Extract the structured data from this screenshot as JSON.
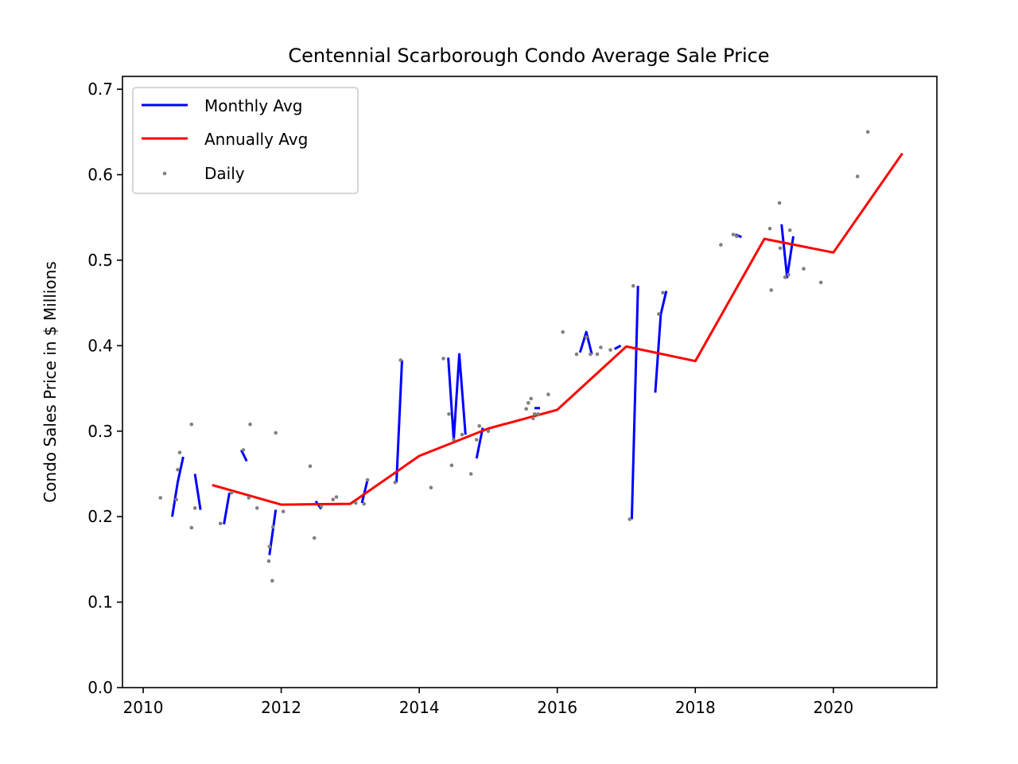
{
  "chart_data": {
    "type": "line",
    "title": "Centennial Scarborough Condo Average Sale Price",
    "xlabel": "",
    "ylabel": "Condo Sales Price in $ Millions",
    "xlim": [
      2009.7,
      2021.5
    ],
    "ylim": [
      0.0,
      0.715
    ],
    "x_ticks": [
      2010,
      2012,
      2014,
      2016,
      2018,
      2020
    ],
    "y_ticks": [
      0.0,
      0.1,
      0.2,
      0.3,
      0.4,
      0.5,
      0.6,
      0.7
    ],
    "x_tick_labels": [
      "2010",
      "2012",
      "2014",
      "2016",
      "2018",
      "2020"
    ],
    "y_tick_labels": [
      "0.0",
      "0.1",
      "0.2",
      "0.3",
      "0.4",
      "0.5",
      "0.6",
      "0.7"
    ],
    "legend_position": "top-left",
    "series": [
      {
        "name": "Monthly Avg",
        "color": "#0000ff",
        "kind": "segments",
        "segments": [
          [
            [
              2010.42,
              0.2
            ],
            [
              2010.5,
              0.24
            ],
            [
              2010.58,
              0.27
            ]
          ],
          [
            [
              2010.75,
              0.25
            ],
            [
              2010.83,
              0.208
            ]
          ],
          [
            [
              2011.17,
              0.191
            ],
            [
              2011.25,
              0.228
            ]
          ],
          [
            [
              2011.42,
              0.278
            ],
            [
              2011.5,
              0.265
            ]
          ],
          [
            [
              2011.83,
              0.155
            ],
            [
              2011.92,
              0.208
            ]
          ],
          [
            [
              2012.5,
              0.218
            ],
            [
              2012.58,
              0.209
            ]
          ],
          [
            [
              2013.17,
              0.216
            ],
            [
              2013.25,
              0.243
            ]
          ],
          [
            [
              2013.67,
              0.24
            ],
            [
              2013.75,
              0.383
            ]
          ],
          [
            [
              2014.42,
              0.386
            ],
            [
              2014.5,
              0.29
            ],
            [
              2014.58,
              0.39
            ],
            [
              2014.67,
              0.296
            ]
          ],
          [
            [
              2014.83,
              0.268
            ],
            [
              2014.92,
              0.304
            ]
          ],
          [
            [
              2015.67,
              0.327
            ],
            [
              2015.75,
              0.327
            ]
          ],
          [
            [
              2016.33,
              0.392
            ],
            [
              2016.42,
              0.416
            ],
            [
              2016.5,
              0.39
            ]
          ],
          [
            [
              2016.83,
              0.396
            ],
            [
              2016.92,
              0.4
            ]
          ],
          [
            [
              2017.08,
              0.197
            ],
            [
              2017.17,
              0.47
            ]
          ],
          [
            [
              2017.42,
              0.345
            ],
            [
              2017.5,
              0.437
            ],
            [
              2017.58,
              0.464
            ]
          ],
          [
            [
              2018.58,
              0.53
            ],
            [
              2018.67,
              0.527
            ]
          ],
          [
            [
              2019.25,
              0.542
            ],
            [
              2019.33,
              0.48
            ],
            [
              2019.42,
              0.528
            ]
          ]
        ]
      },
      {
        "name": "Annually Avg",
        "color": "#ff0000",
        "kind": "line",
        "x": [
          2011,
          2012,
          2013,
          2014,
          2015,
          2016,
          2017,
          2018,
          2019,
          2020,
          2021
        ],
        "y": [
          0.237,
          0.214,
          0.215,
          0.271,
          0.303,
          0.325,
          0.399,
          0.382,
          0.525,
          0.509,
          0.625
        ]
      },
      {
        "name": "Daily",
        "color": "#808080",
        "kind": "scatter",
        "x": [
          2010.25,
          2010.48,
          2010.5,
          2010.53,
          2010.7,
          2010.7,
          2010.75,
          2011.12,
          2011.28,
          2011.45,
          2011.53,
          2011.55,
          2011.65,
          2011.82,
          2011.83,
          2011.87,
          2011.88,
          2011.92,
          2012.03,
          2012.42,
          2012.48,
          2012.58,
          2012.75,
          2012.8,
          2013.08,
          2013.2,
          2013.25,
          2013.65,
          2013.73,
          2014.17,
          2014.35,
          2014.43,
          2014.47,
          2014.5,
          2014.62,
          2014.75,
          2014.83,
          2014.87,
          2015.0,
          2015.55,
          2015.58,
          2015.62,
          2015.65,
          2015.67,
          2015.72,
          2015.87,
          2016.08,
          2016.28,
          2016.42,
          2016.48,
          2016.58,
          2016.63,
          2016.77,
          2017.05,
          2017.1,
          2017.47,
          2017.53,
          2018.37,
          2018.55,
          2018.6,
          2019.08,
          2019.1,
          2019.22,
          2019.23,
          2019.3,
          2019.35,
          2019.37,
          2019.57,
          2019.82,
          2020.35,
          2020.5
        ],
        "y": [
          0.222,
          0.22,
          0.255,
          0.275,
          0.308,
          0.187,
          0.21,
          0.192,
          0.228,
          0.278,
          0.222,
          0.308,
          0.21,
          0.148,
          0.165,
          0.125,
          0.188,
          0.298,
          0.206,
          0.259,
          0.175,
          0.212,
          0.22,
          0.223,
          0.216,
          0.215,
          0.243,
          0.24,
          0.383,
          0.234,
          0.385,
          0.32,
          0.26,
          0.29,
          0.296,
          0.25,
          0.29,
          0.306,
          0.3,
          0.326,
          0.333,
          0.338,
          0.315,
          0.32,
          0.32,
          0.343,
          0.416,
          0.39,
          0.41,
          0.39,
          0.39,
          0.398,
          0.395,
          0.197,
          0.47,
          0.437,
          0.462,
          0.518,
          0.53,
          0.528,
          0.537,
          0.465,
          0.567,
          0.514,
          0.48,
          0.483,
          0.535,
          0.49,
          0.474,
          0.598,
          0.65
        ]
      }
    ]
  }
}
